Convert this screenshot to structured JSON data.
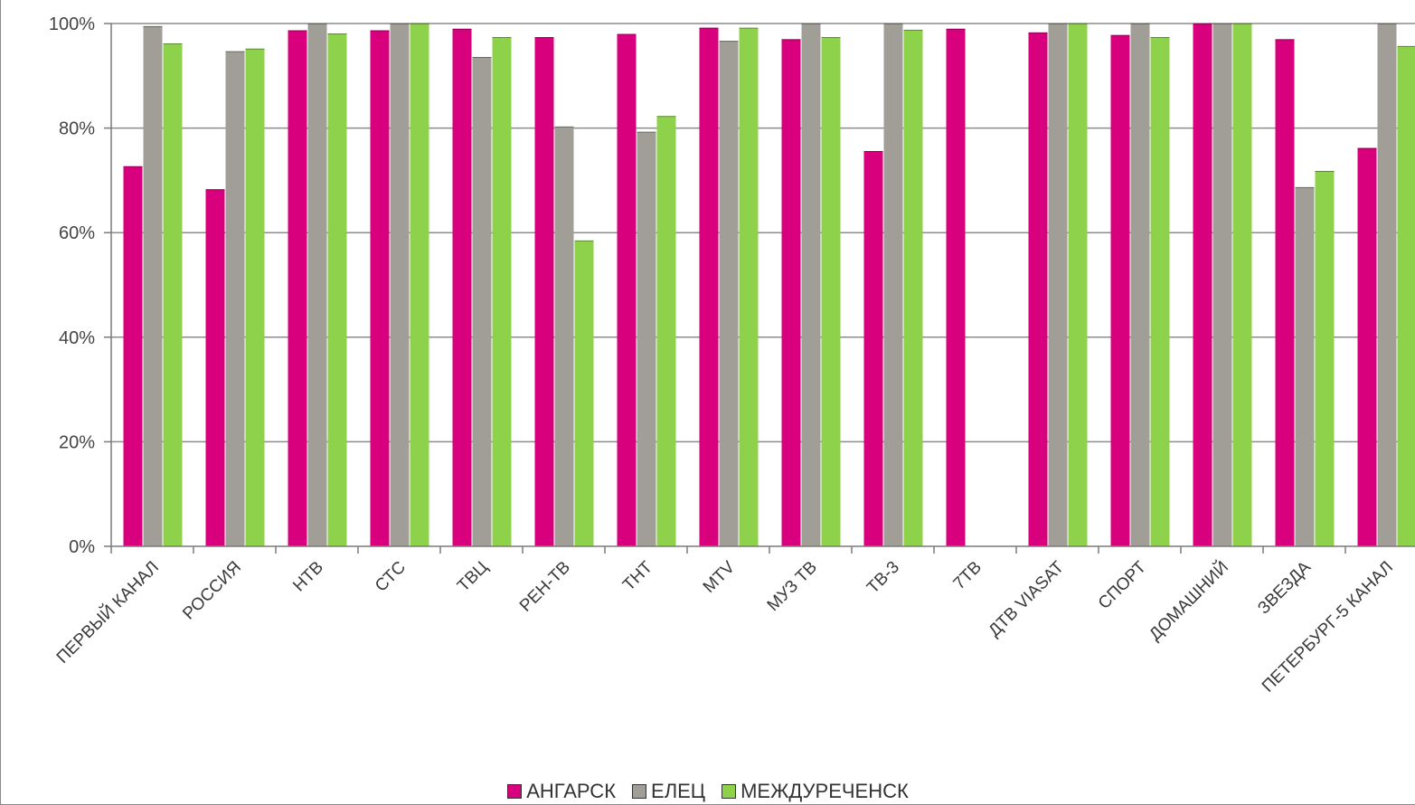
{
  "chart_data": {
    "type": "bar",
    "title": "",
    "xlabel": "",
    "ylabel": "",
    "ylim": [
      0,
      100
    ],
    "y_ticks": [
      "0%",
      "20%",
      "40%",
      "60%",
      "80%",
      "100%"
    ],
    "grid": true,
    "legend_position": "bottom",
    "categories": [
      "ПЕРВЫЙ КАНАЛ",
      "РОССИЯ",
      "НТВ",
      "СТС",
      "ТВЦ",
      "РЕН-ТВ",
      "ТНТ",
      "MTV",
      "МУЗ ТВ",
      "ТВ-3",
      "7ТВ",
      "ДТВ VIASAT",
      "СПОРТ",
      "ДОМАШНИЙ",
      "ЗВЕЗДА",
      "ПЕТЕРБУРГ-5 КАНАЛ"
    ],
    "series": [
      {
        "name": "АНГАРСК",
        "color": "#d9007e",
        "values": [
          72.7,
          68.3,
          98.7,
          98.7,
          99.0,
          97.4,
          98.0,
          99.2,
          97.0,
          75.6,
          99.0,
          98.3,
          97.8,
          100.0,
          97.0,
          76.2
        ]
      },
      {
        "name": "ЕЛЕЦ",
        "color": "#a09e96",
        "values": [
          99.5,
          94.7,
          100.0,
          100.0,
          93.6,
          80.3,
          79.3,
          96.7,
          100.0,
          100.0,
          null,
          100.0,
          100.0,
          100.0,
          68.7,
          100.0
        ]
      },
      {
        "name": "МЕЖДУРЕЧЕНСК",
        "color": "#8ed14a",
        "values": [
          96.2,
          95.2,
          98.1,
          100.0,
          97.4,
          58.5,
          82.3,
          99.2,
          97.4,
          98.8,
          null,
          100.0,
          97.4,
          100.0,
          71.8,
          95.7
        ]
      }
    ]
  }
}
